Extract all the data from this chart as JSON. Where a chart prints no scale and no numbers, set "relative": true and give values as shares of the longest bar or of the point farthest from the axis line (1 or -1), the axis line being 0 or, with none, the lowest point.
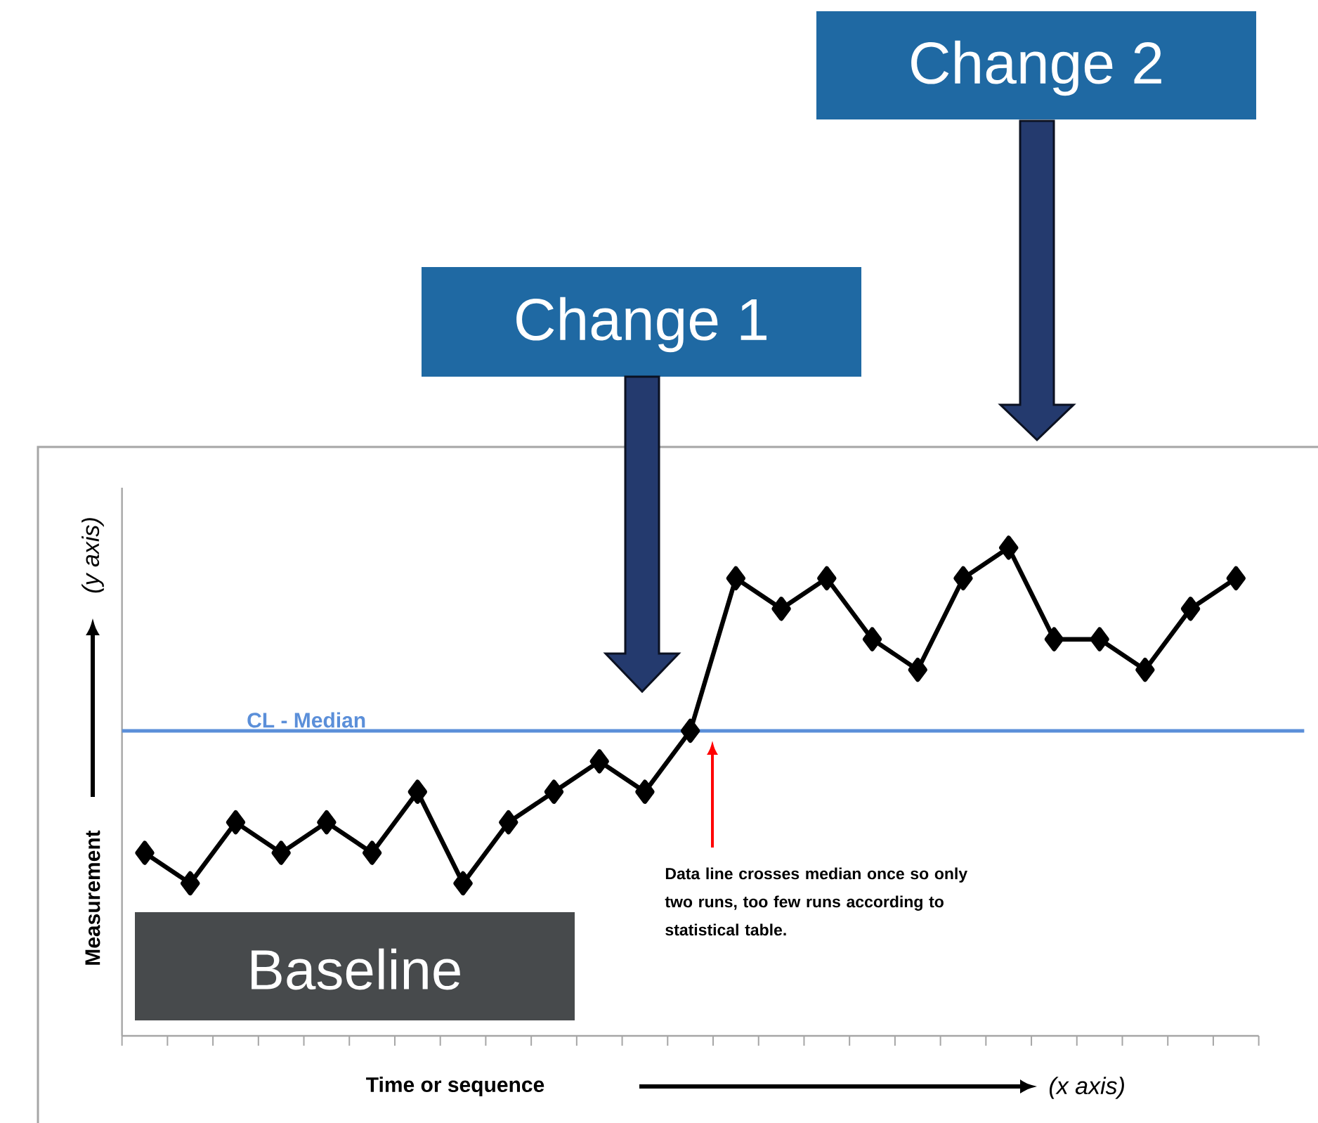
{
  "chart_data": {
    "type": "line",
    "relative": true,
    "xlabel": "Time or sequence",
    "ylabel": "Measurement",
    "categories": [
      null,
      null,
      null,
      null,
      null,
      null,
      null,
      null,
      null,
      null,
      null,
      null,
      null,
      null,
      null,
      null,
      null,
      null,
      null,
      null,
      null,
      null,
      null,
      null,
      null
    ],
    "series": [
      {
        "color": "#000000",
        "values": [
          0.375,
          0.3125,
          0.4375,
          0.375,
          0.4375,
          0.375,
          0.5,
          0.3125,
          0.4375,
          0.5,
          0.5625,
          0.5,
          0.625,
          0.9375,
          0.875,
          0.9375,
          0.8125,
          0.75,
          0.9375,
          1,
          0.8125,
          0.8125,
          0.75,
          0.875,
          0.9375
        ]
      }
    ],
    "marker": "diamond",
    "line_style": "solid",
    "ref_lines": [
      {
        "axis": "y",
        "value": 0.625,
        "label": "CL - Median",
        "color": "#5b8fd9"
      }
    ],
    "annotations": [
      "Change 1",
      "Change 2",
      "Baseline",
      "Data line crosses median once so only two runs, too few runs according to statistical table.",
      "(y axis)",
      "(x axis)"
    ]
  }
}
